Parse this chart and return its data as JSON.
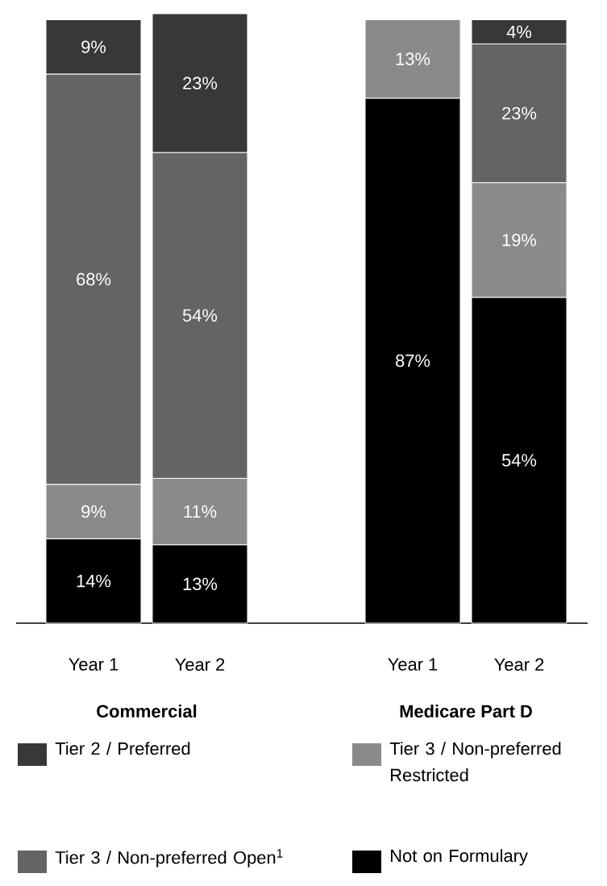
{
  "chart_data": {
    "type": "bar",
    "stacked": true,
    "legend": "bottom",
    "categories": [
      "Year 1",
      "Year 2",
      null,
      "Year 1",
      "Year 2"
    ],
    "annotations": [
      "Commercial",
      "Medicare Part D"
    ],
    "series": [
      {
        "name": "Not on Formulary",
        "color": "#000000",
        "values": [
          14,
          13,
          null,
          87,
          54
        ],
        "value_labels": [
          "14%",
          "13%",
          null,
          "87%",
          "54%"
        ]
      },
      {
        "name": "Tier 3 / Non-preferred Restricted",
        "color": "#8a8a8a",
        "values": [
          9,
          11,
          null,
          13,
          19
        ],
        "value_labels": [
          "9%",
          "11%",
          null,
          "13%",
          "19%"
        ]
      },
      {
        "name": "Tier 3  / Non-preferred Open$^{1}$",
        "color": "#646464",
        "values": [
          68,
          54,
          null,
          null,
          23
        ],
        "value_labels": [
          "68%",
          "54%",
          null,
          null,
          "23%"
        ]
      },
      {
        "name": "Tier 2 / Preferred",
        "color": "#383838",
        "values": [
          9,
          23,
          null,
          null,
          4
        ],
        "value_labels": [
          "9%",
          "23%",
          null,
          null,
          "4%"
        ]
      }
    ]
  }
}
